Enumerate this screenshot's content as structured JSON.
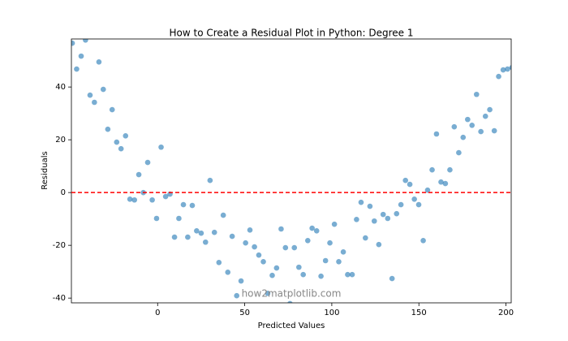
{
  "chart_data": {
    "type": "scatter",
    "title": "How to Create a Residual Plot in Python: Degree 1",
    "x_label": "Predicted Values",
    "y_label": "Residuals",
    "watermark": "how2matplotlib.com",
    "color": "#1f77b4",
    "hline": {
      "value": 0,
      "color": "#ff0000"
    },
    "xlim": [
      -49.5,
      203
    ],
    "ylim": [
      -41.8,
      58.2
    ],
    "xticks": [
      0,
      50,
      100,
      150,
      200
    ],
    "yticks": [
      -40,
      -20,
      0,
      20,
      40
    ],
    "x": [
      -49.0,
      -46.5,
      -43.9,
      -41.4,
      -38.8,
      -36.3,
      -33.7,
      -31.2,
      -28.6,
      -26.1,
      -23.5,
      -21.0,
      -18.4,
      -15.9,
      -13.3,
      -10.8,
      -8.2,
      -5.7,
      -3.1,
      -0.6,
      2.0,
      4.6,
      7.1,
      9.7,
      12.2,
      14.8,
      17.3,
      19.9,
      22.4,
      25.0,
      27.5,
      30.1,
      32.6,
      35.2,
      37.7,
      40.3,
      42.8,
      45.4,
      47.9,
      50.5,
      53.0,
      55.6,
      58.1,
      60.7,
      63.2,
      65.8,
      68.3,
      70.9,
      73.4,
      76.0,
      78.5,
      81.1,
      83.6,
      86.2,
      88.7,
      91.3,
      93.8,
      96.4,
      98.9,
      101.5,
      104.0,
      106.6,
      109.1,
      111.7,
      114.2,
      116.8,
      119.3,
      121.9,
      124.4,
      127.0,
      129.5,
      132.1,
      134.6,
      137.2,
      139.7,
      142.3,
      144.8,
      147.4,
      149.9,
      152.5,
      155.0,
      157.6,
      160.1,
      162.7,
      165.2,
      167.8,
      170.3,
      172.9,
      175.4,
      178.0,
      180.5,
      183.1,
      185.6,
      188.2,
      190.7,
      193.3,
      195.8,
      198.4,
      200.9,
      203.5
    ],
    "values": [
      56.6,
      46.8,
      51.7,
      57.8,
      36.9,
      34.2,
      49.5,
      39.1,
      24.0,
      31.4,
      19.1,
      16.6,
      21.5,
      -2.5,
      -2.8,
      6.8,
      0,
      11.4,
      -2.8,
      -9.8,
      17.2,
      -1.5,
      -0.6,
      -16.9,
      -9.8,
      -4.6,
      -16.9,
      -4.9,
      -14.5,
      -15.4,
      -18.8,
      4.6,
      -15.1,
      -26.5,
      -8.6,
      -30.2,
      -16.6,
      -39.1,
      -33.5,
      -19.1,
      -14.2,
      -20.6,
      -23.7,
      -26.2,
      -38.2,
      -31.4,
      -28.6,
      -13.8,
      -20.9,
      -42.1,
      -20.9,
      -28.3,
      -31.1,
      -18.2,
      -13.5,
      -14.5,
      -31.7,
      -25.8,
      -19.1,
      -12.0,
      -26.2,
      -22.5,
      -31.1,
      -31.1,
      -10.2,
      -3.7,
      -17.2,
      -5.2,
      -10.8,
      -19.7,
      -8.3,
      -9.8,
      -32.6,
      -8.0,
      -4.6,
      4.6,
      3.1,
      -2.5,
      -4.6,
      -18.2,
      0.9,
      8.6,
      22.2,
      4.0,
      3.4,
      8.6,
      24.9,
      15.1,
      20.9,
      27.7,
      25.5,
      37.2,
      23.1,
      28.9,
      31.4,
      23.4,
      44.0,
      46.5,
      46.8,
      47.4
    ]
  }
}
